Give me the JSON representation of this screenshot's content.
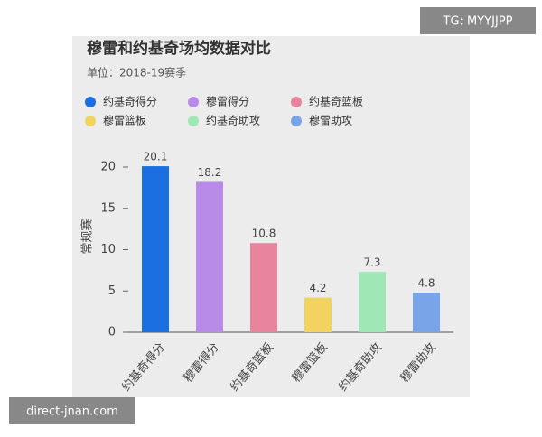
{
  "chart_data": {
    "type": "bar",
    "title": "穆雷和约基奇场均数据对比",
    "subtitle": "单位：2018-19赛季",
    "y_label": "常规赛",
    "categories": [
      "约基奇得分",
      "穆雷得分",
      "约基奇篮板",
      "穆雷篮板",
      "约基奇助攻",
      "穆雷助攻"
    ],
    "values": [
      20.1,
      18.2,
      10.8,
      4.2,
      7.3,
      4.8
    ],
    "colors": [
      "#1c6fe0",
      "#b88be8",
      "#e9849e",
      "#f2d35f",
      "#9fe8b6",
      "#79a5e8"
    ],
    "ylim": [
      0,
      20
    ],
    "yticks": [
      0,
      5,
      10,
      15,
      20
    ],
    "legend": "top"
  },
  "watermarks": {
    "top_right": "TG: MYYJJPP",
    "bottom_left": "direct-jnan.com"
  }
}
